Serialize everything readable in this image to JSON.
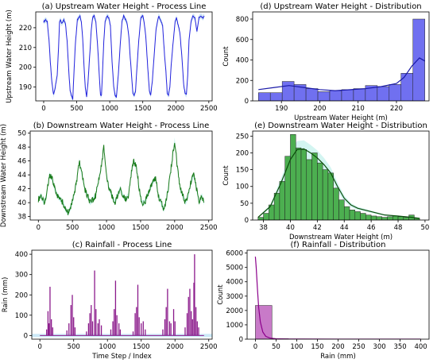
{
  "chart_data": [
    {
      "id": "a",
      "type": "line",
      "title": "(a) Upstream Water Height - Process Line",
      "xlabel": "",
      "ylabel": "Upstream Water Height (m)",
      "xlim": [
        -120,
        2550
      ],
      "ylim": [
        183,
        228
      ],
      "xticks": [
        0,
        500,
        1000,
        1500,
        2000,
        2500
      ],
      "yticks": [
        190,
        200,
        210,
        220
      ],
      "color": "#2222dd",
      "band_color": "#b8d8f0",
      "series": [
        {
          "x": [
            0,
            30,
            55,
            80,
            100,
            125,
            150,
            175,
            205,
            225,
            240,
            255,
            270,
            290,
            305,
            330,
            355,
            380,
            400,
            425,
            440,
            455,
            480,
            510,
            530,
            550,
            570,
            590,
            610,
            630,
            650,
            670,
            695,
            720,
            740,
            765,
            790,
            820,
            845,
            860,
            875,
            890,
            910,
            930,
            960,
            985,
            1010,
            1035,
            1060,
            1080,
            1100,
            1130,
            1160,
            1185,
            1210,
            1240,
            1265,
            1290,
            1310,
            1330,
            1350,
            1370,
            1390,
            1410,
            1440,
            1470,
            1500,
            1520,
            1545,
            1575,
            1600,
            1620,
            1645,
            1670,
            1700,
            1740,
            1770,
            1800,
            1830,
            1850,
            1870,
            1890,
            1910,
            1930,
            1960,
            1990,
            2010,
            2030,
            2060,
            2090,
            2120,
            2140,
            2160,
            2180,
            2200,
            2230,
            2260,
            2290,
            2320,
            2350,
            2380,
            2410,
            2430
          ],
          "y": [
            223,
            224,
            223,
            214,
            203,
            192,
            186,
            190,
            196,
            210,
            223,
            224,
            222,
            223,
            224,
            222,
            213,
            198,
            188,
            185,
            184,
            195,
            212,
            224,
            225,
            226,
            223,
            215,
            201,
            190,
            185,
            192,
            205,
            219,
            225,
            226,
            223,
            209,
            194,
            186,
            186,
            197,
            213,
            223,
            226,
            225,
            221,
            203,
            190,
            186,
            185,
            196,
            212,
            223,
            226,
            224,
            222,
            215,
            205,
            196,
            187,
            186,
            188,
            199,
            214,
            225,
            226,
            223,
            216,
            200,
            188,
            186,
            193,
            205,
            219,
            226,
            224,
            221,
            206,
            198,
            187,
            186,
            190,
            201,
            213,
            223,
            225,
            222,
            218,
            206,
            191,
            187,
            186,
            196,
            214,
            223,
            226,
            225,
            218,
            225,
            226,
            225,
            226
          ]
        }
      ]
    },
    {
      "id": "b",
      "type": "line",
      "title": "(b) Downstream Water Height - Process Line",
      "xlabel": "",
      "ylabel": "Downstream Water Height (m)",
      "xlim": [
        -120,
        2550
      ],
      "ylim": [
        37.5,
        50.3
      ],
      "xticks": [
        0,
        500,
        1000,
        1500,
        2000,
        2500
      ],
      "yticks": [
        38,
        40,
        42,
        44,
        46,
        48,
        50
      ],
      "color": "#1a7a1a",
      "band_color": "#b8f0ea",
      "series": [
        {
          "x": [
            0,
            40,
            80,
            120,
            160,
            200,
            240,
            280,
            320,
            360,
            400,
            440,
            480,
            520,
            560,
            600,
            640,
            680,
            720,
            760,
            800,
            840,
            880,
            920,
            960,
            1000,
            1040,
            1080,
            1120,
            1160,
            1200,
            1240,
            1280,
            1320,
            1360,
            1400,
            1440,
            1480,
            1520,
            1560,
            1600,
            1640,
            1680,
            1720,
            1760,
            1800,
            1840,
            1880,
            1920,
            1960,
            2000,
            2040,
            2080,
            2120,
            2160,
            2200,
            2240,
            2280,
            2320,
            2360,
            2400,
            2430
          ],
          "y": [
            40.5,
            41,
            40,
            41,
            44,
            43.5,
            42,
            41,
            40.5,
            40,
            39,
            38.5,
            39.5,
            41,
            43,
            46,
            44,
            42,
            41,
            40,
            40.5,
            41,
            43,
            45,
            48,
            44,
            42,
            41,
            40,
            41,
            42,
            41,
            40.5,
            41,
            44,
            46,
            45,
            42,
            40,
            40,
            41,
            42,
            43,
            43.5,
            41,
            40,
            39,
            40.5,
            43,
            46,
            49,
            45,
            42,
            41,
            40,
            41,
            43,
            44,
            42,
            40,
            41,
            40
          ]
        }
      ]
    },
    {
      "id": "c",
      "type": "bar",
      "title": "(c) Rainfall - Process Line",
      "xlabel": "Time Step / Index",
      "ylabel": "Rain (mm)",
      "xlim": [
        -120,
        2550
      ],
      "ylim": [
        -18,
        420
      ],
      "xticks": [
        0,
        500,
        1000,
        1500,
        2000,
        2500
      ],
      "yticks": [
        0,
        100,
        200,
        300,
        400
      ],
      "color": "#8b1a8b",
      "band_color": "#bfe4f5",
      "series": [
        {
          "x": [
            100,
            120,
            135,
            150,
            170,
            190,
            400,
            430,
            460,
            480,
            500,
            520,
            690,
            720,
            740,
            760,
            780,
            810,
            830,
            860,
            880,
            910,
            1050,
            1080,
            1100,
            1120,
            1140,
            1170,
            1190,
            1380,
            1410,
            1430,
            1450,
            1470,
            1500,
            1530,
            1560,
            1820,
            1850,
            1870,
            1890,
            1920,
            1940,
            1980,
            2000,
            2150,
            2180,
            2200,
            2220,
            2240,
            2260,
            2280,
            2290,
            2310,
            2330,
            2350
          ],
          "y": [
            30,
            120,
            60,
            240,
            80,
            40,
            25,
            60,
            150,
            200,
            90,
            40,
            20,
            60,
            110,
            150,
            70,
            320,
            130,
            60,
            80,
            50,
            30,
            70,
            130,
            270,
            100,
            60,
            30,
            20,
            110,
            140,
            250,
            90,
            60,
            70,
            30,
            30,
            80,
            140,
            230,
            70,
            60,
            130,
            70,
            40,
            110,
            190,
            230,
            120,
            80,
            260,
            400,
            140,
            70,
            40
          ]
        }
      ]
    },
    {
      "id": "d",
      "type": "bar",
      "title": "(d) Upstream Water Height - Distribution",
      "xlabel": "Upstream Water Height (m)",
      "ylabel": "Count",
      "xlim": [
        182.5,
        228.5
      ],
      "ylim": [
        0,
        870
      ],
      "xticks": [
        190,
        200,
        210,
        220
      ],
      "yticks": [
        0,
        200,
        400,
        600,
        800
      ],
      "bar_color": "#7070f0",
      "kde_color": "#1a1aa8",
      "bins": [
        [
          184,
          187.1
        ],
        [
          187.1,
          190.2
        ],
        [
          190.2,
          193.3
        ],
        [
          193.3,
          196.4
        ],
        [
          196.4,
          199.5
        ],
        [
          199.5,
          202.6
        ],
        [
          202.6,
          205.7
        ],
        [
          205.7,
          208.8
        ],
        [
          208.8,
          211.9
        ],
        [
          211.9,
          215
        ],
        [
          215,
          218.1
        ],
        [
          218.1,
          221.2
        ],
        [
          221.2,
          224.3
        ],
        [
          224.3,
          227.4
        ]
      ],
      "counts": [
        80,
        80,
        190,
        160,
        120,
        90,
        100,
        110,
        120,
        150,
        140,
        160,
        270,
        800
      ],
      "kde": {
        "x": [
          184,
          188,
          192,
          196,
          200,
          204,
          208,
          212,
          216,
          220,
          222,
          224,
          226,
          227.4
        ],
        "y": [
          110,
          130,
          150,
          130,
          110,
          100,
          110,
          120,
          140,
          170,
          230,
          340,
          420,
          390
        ]
      }
    },
    {
      "id": "e",
      "type": "bar",
      "title": "(e) Downstream Water Height - Distribution",
      "xlabel": "Downstream Water Height (m)",
      "ylabel": "Count",
      "xlim": [
        37.2,
        50.3
      ],
      "ylim": [
        0,
        265
      ],
      "xticks": [
        38,
        40,
        42,
        44,
        46,
        48,
        50
      ],
      "yticks": [
        0,
        50,
        100,
        150,
        200,
        250
      ],
      "bar_color": "#4caf50",
      "kde_color": "#0b4d0b",
      "band_color": "#c8f3ee",
      "bins": [
        [
          37.6,
          38
        ],
        [
          38,
          38.4
        ],
        [
          38.4,
          38.8
        ],
        [
          38.8,
          39.2
        ],
        [
          39.2,
          39.6
        ],
        [
          39.6,
          40
        ],
        [
          40,
          40.4
        ],
        [
          40.4,
          40.8
        ],
        [
          40.8,
          41.2
        ],
        [
          41.2,
          41.6
        ],
        [
          41.6,
          42
        ],
        [
          42,
          42.4
        ],
        [
          42.4,
          42.8
        ],
        [
          42.8,
          43.2
        ],
        [
          43.2,
          43.6
        ],
        [
          43.6,
          44
        ],
        [
          44,
          44.4
        ],
        [
          44.4,
          44.8
        ],
        [
          44.8,
          45.2
        ],
        [
          45.2,
          45.6
        ],
        [
          45.6,
          46
        ],
        [
          46,
          46.4
        ],
        [
          46.4,
          46.8
        ],
        [
          46.8,
          47.2
        ],
        [
          47.2,
          47.6
        ],
        [
          47.6,
          48
        ],
        [
          48,
          48.4
        ],
        [
          48.4,
          48.8
        ],
        [
          48.8,
          49.2
        ],
        [
          49.2,
          49.6
        ]
      ],
      "counts": [
        8,
        20,
        45,
        80,
        115,
        190,
        255,
        215,
        210,
        180,
        200,
        170,
        150,
        140,
        95,
        60,
        40,
        30,
        25,
        20,
        15,
        12,
        10,
        8,
        10,
        12,
        10,
        8,
        15,
        5
      ],
      "kde": {
        "x": [
          37.6,
          38.5,
          39.3,
          40,
          40.5,
          41,
          41.5,
          42,
          42.5,
          43,
          43.5,
          44,
          44.5,
          45,
          46,
          47,
          48,
          49,
          49.6
        ],
        "y": [
          8,
          40,
          110,
          180,
          210,
          212,
          200,
          185,
          165,
          140,
          100,
          65,
          45,
          35,
          25,
          15,
          12,
          8,
          5
        ]
      }
    },
    {
      "id": "f",
      "type": "bar",
      "title": "(f) Rainfall - Distribution",
      "xlabel": "Rain (mm)",
      "ylabel": "Count",
      "xlim": [
        -20,
        420
      ],
      "ylim": [
        0,
        6200
      ],
      "xticks": [
        0,
        50,
        100,
        150,
        200,
        250,
        300,
        350,
        400
      ],
      "yticks": [
        0,
        1000,
        2000,
        3000,
        4000,
        5000,
        6000
      ],
      "bar_color": "#c87ac8",
      "kde_color": "#8b008b",
      "bins": [
        [
          0,
          40
        ],
        [
          40,
          80
        ],
        [
          80,
          120
        ],
        [
          120,
          160
        ],
        [
          160,
          200
        ],
        [
          200,
          240
        ],
        [
          240,
          280
        ],
        [
          280,
          320
        ],
        [
          320,
          360
        ],
        [
          360,
          400
        ]
      ],
      "counts": [
        2350,
        30,
        15,
        10,
        6,
        4,
        3,
        3,
        2,
        1
      ],
      "kde": {
        "x": [
          0,
          2,
          5,
          8,
          12,
          18,
          25,
          35,
          50,
          80,
          120,
          200,
          300,
          400
        ],
        "y": [
          5750,
          5000,
          3500,
          2200,
          1200,
          500,
          200,
          80,
          30,
          10,
          5,
          2,
          1,
          0
        ]
      }
    }
  ]
}
